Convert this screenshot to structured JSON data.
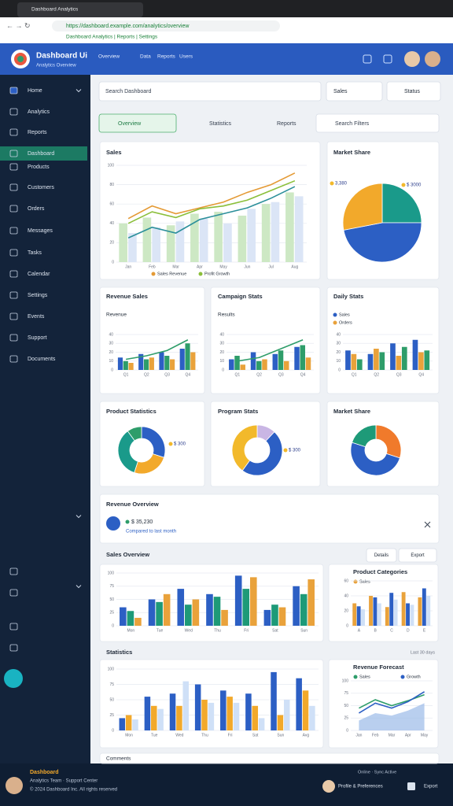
{
  "browser": {
    "tab": "Dashboard Analytics",
    "url": "https://dashboard.example.com/analytics/overview",
    "bookmarks": "Dashboard Analytics | Reports | Settings"
  },
  "header": {
    "title": "Dashboard Ui",
    "subtitle": "Analytics Overview",
    "nav": [
      "Overview",
      "Data",
      "Reports",
      "Users"
    ]
  },
  "sidebar": {
    "items": [
      "Home",
      "Analytics",
      "Reports",
      "Dashboard",
      "Products",
      "Customers",
      "Orders",
      "Messages",
      "Tasks",
      "Calendar",
      "Settings",
      "Events",
      "Support",
      "Documents"
    ],
    "active": 3
  },
  "toolbar": {
    "search": "Search Dashboard",
    "select1": "Sales",
    "select2": "Status",
    "tabs": [
      "Overview",
      "Statistics",
      "Reports",
      "Search Filters"
    ]
  },
  "charts": [
    {
      "type": "line",
      "title": "Sales",
      "categories": [
        "Jan",
        "Feb",
        "Mar",
        "Apr",
        "May",
        "Jun",
        "Jul",
        "Aug"
      ],
      "ylim": [
        0,
        100
      ],
      "yticks": [
        0,
        20,
        40,
        60,
        80,
        100
      ],
      "grid": true,
      "series": [
        {
          "color": "#cde8c4",
          "type": "bar",
          "values": [
            40,
            46,
            38,
            50,
            52,
            48,
            60,
            72
          ]
        },
        {
          "color": "#dbe5f6",
          "type": "bar",
          "values": [
            30,
            36,
            42,
            45,
            40,
            55,
            62,
            68
          ]
        },
        {
          "name": "Sales Revenue",
          "color": "#e49a35",
          "type": "line",
          "values": [
            45,
            58,
            50,
            56,
            62,
            72,
            80,
            92
          ]
        },
        {
          "name": "Profit Growth",
          "color": "#8bbf3a",
          "type": "line",
          "values": [
            40,
            52,
            46,
            55,
            58,
            64,
            74,
            84
          ]
        },
        {
          "color": "#2b8f9a",
          "type": "line",
          "values": [
            25,
            36,
            30,
            44,
            50,
            56,
            66,
            78
          ]
        }
      ]
    },
    {
      "type": "pie",
      "title": "Market Share",
      "values": [
        25,
        47,
        28
      ],
      "colors": [
        "#1a9a8a",
        "#2c5fc4",
        "#f2a92b"
      ],
      "annotations": [
        "3,380",
        "$ 3000"
      ]
    },
    {
      "type": "bar",
      "title": "Revenue Sales",
      "subtitle": "Revenue",
      "categories": [
        "Q1",
        "Q2",
        "Q3",
        "Q4"
      ],
      "ylim": [
        0,
        40
      ],
      "yticks": [
        0,
        10,
        20,
        30,
        40
      ],
      "grid": true,
      "series": [
        {
          "color": "#2c5fc4",
          "type": "bar",
          "values": [
            14,
            18,
            20,
            24
          ]
        },
        {
          "color": "#2e9d6a",
          "type": "bar",
          "values": [
            10,
            12,
            16,
            30
          ]
        },
        {
          "color": "#e9a23b",
          "type": "bar",
          "values": [
            8,
            14,
            12,
            20
          ]
        },
        {
          "color": "#2e9d6a",
          "type": "line",
          "values": [
            12,
            16,
            22,
            34
          ]
        }
      ]
    },
    {
      "type": "bar",
      "title": "Campaign Stats",
      "subtitle": "Results",
      "categories": [
        "Q1",
        "Q2",
        "Q3",
        "Q4"
      ],
      "ylim": [
        0,
        40
      ],
      "yticks": [
        0,
        10,
        20,
        30,
        40
      ],
      "grid": true,
      "series": [
        {
          "color": "#2c5fc4",
          "type": "bar",
          "values": [
            12,
            20,
            18,
            26
          ]
        },
        {
          "color": "#2e9d6a",
          "type": "bar",
          "values": [
            16,
            10,
            22,
            28
          ]
        },
        {
          "color": "#e9a23b",
          "type": "bar",
          "values": [
            6,
            12,
            10,
            14
          ]
        },
        {
          "color": "#2e9d6a",
          "type": "line",
          "values": [
            10,
            14,
            24,
            34
          ]
        }
      ]
    },
    {
      "type": "bar",
      "title": "Daily Stats",
      "categories": [
        "Q1",
        "Q2",
        "Q3",
        "Q4"
      ],
      "ylim": [
        0,
        40
      ],
      "yticks": [
        0,
        10,
        20,
        30,
        40
      ],
      "grid": true,
      "series": [
        {
          "name": "Sales",
          "color": "#2c5fc4",
          "type": "bar",
          "values": [
            22,
            18,
            30,
            34
          ]
        },
        {
          "name": "Orders",
          "color": "#e9a23b",
          "type": "bar",
          "values": [
            18,
            24,
            16,
            20
          ]
        },
        {
          "color": "#2e9d6a",
          "type": "bar",
          "values": [
            12,
            20,
            26,
            22
          ]
        }
      ]
    },
    {
      "type": "donut",
      "title": "Product Statistics",
      "values": [
        30,
        25,
        35,
        10
      ],
      "colors": [
        "#2c5fc4",
        "#f2a92b",
        "#1a9a8a",
        "#2e9d6a"
      ],
      "annotations": [
        "$ 300"
      ]
    },
    {
      "type": "donut",
      "title": "Program Stats",
      "values": [
        12,
        48,
        40
      ],
      "colors": [
        "#c9b6e4",
        "#2c5fc4",
        "#f2b92b"
      ],
      "annotations": [
        "$ 300"
      ]
    },
    {
      "type": "donut",
      "title": "Market Share",
      "values": [
        30,
        50,
        20
      ],
      "colors": [
        "#f07a2b",
        "#2c5fc4",
        "#1e9a78"
      ]
    },
    {
      "type": "bar",
      "categories": [
        "Mon",
        "Tue",
        "Wed",
        "Thu",
        "Fri",
        "Sat",
        "Sun"
      ],
      "ylim": [
        0,
        100
      ],
      "yticks": [
        0,
        25,
        50,
        75,
        100
      ],
      "grid": true,
      "series": [
        {
          "color": "#2c5fc4",
          "type": "bar",
          "values": [
            35,
            50,
            70,
            60,
            95,
            30,
            75
          ]
        },
        {
          "color": "#1e9a78",
          "type": "bar",
          "values": [
            28,
            45,
            40,
            55,
            70,
            40,
            60
          ]
        },
        {
          "color": "#e9a23b",
          "type": "bar",
          "values": [
            15,
            60,
            50,
            30,
            92,
            35,
            88
          ]
        }
      ]
    },
    {
      "type": "bar",
      "title": "Product Categories",
      "categories": [
        "A",
        "B",
        "C",
        "D",
        "E"
      ],
      "ylim": [
        0,
        60
      ],
      "yticks": [
        0,
        20,
        40,
        60
      ],
      "grid": true,
      "series": [
        {
          "name": "Sales",
          "color": "#e9a23b",
          "type": "bar",
          "values": [
            30,
            40,
            25,
            45,
            38
          ]
        },
        {
          "color": "#2c5fc4",
          "type": "bar",
          "values": [
            26,
            38,
            44,
            30,
            50
          ]
        },
        {
          "color": "#cfe0f7",
          "type": "bar",
          "values": [
            22,
            30,
            35,
            28,
            40
          ]
        }
      ]
    },
    {
      "type": "bar",
      "categories": [
        "Mon",
        "Tue",
        "Wed",
        "Thu",
        "Fri",
        "Sat",
        "Sun",
        "Avg"
      ],
      "ylim": [
        0,
        100
      ],
      "yticks": [
        0,
        25,
        50,
        75,
        100
      ],
      "grid": true,
      "series": [
        {
          "color": "#2c5fc4",
          "type": "bar",
          "values": [
            20,
            55,
            60,
            75,
            65,
            60,
            95,
            85
          ]
        },
        {
          "color": "#f2a92b",
          "type": "bar",
          "values": [
            25,
            40,
            40,
            50,
            55,
            40,
            25,
            65
          ]
        },
        {
          "color": "#cfe0f7",
          "type": "bar",
          "values": [
            18,
            35,
            80,
            45,
            45,
            20,
            50,
            40
          ]
        }
      ]
    },
    {
      "type": "line",
      "title": "Revenue Forecast",
      "categories": [
        "Jan",
        "Feb",
        "Mar",
        "Apr",
        "May"
      ],
      "ylim": [
        0,
        100
      ],
      "yticks": [
        0,
        25,
        50,
        75,
        100
      ],
      "grid": true,
      "series": [
        {
          "color": "#9bbbe8",
          "type": "area",
          "values": [
            20,
            35,
            30,
            40,
            55
          ]
        },
        {
          "name": "Sales",
          "color": "#2e9d6a",
          "type": "line",
          "values": [
            45,
            62,
            50,
            60,
            72
          ]
        },
        {
          "name": "Growth",
          "color": "#2c5fc4",
          "type": "line",
          "values": [
            35,
            55,
            45,
            58,
            78
          ]
        }
      ]
    }
  ],
  "revenue": {
    "title": "Revenue Overview",
    "value": "$ 35,230",
    "note": "Compared to last month"
  },
  "sections": {
    "sales": "Sales Overview",
    "stats": "Statistics",
    "period": "Last 30 days",
    "buttons": [
      "Details",
      "Export"
    ]
  },
  "comments": "Comments",
  "footer": {
    "brand": "Dashboard",
    "line1": "Analytics Team · Support Center",
    "line2": "© 2024 Dashboard Inc. All rights reserved",
    "user": "Profile & Preferences",
    "action": "Export",
    "status": "Online · Sync Active"
  }
}
